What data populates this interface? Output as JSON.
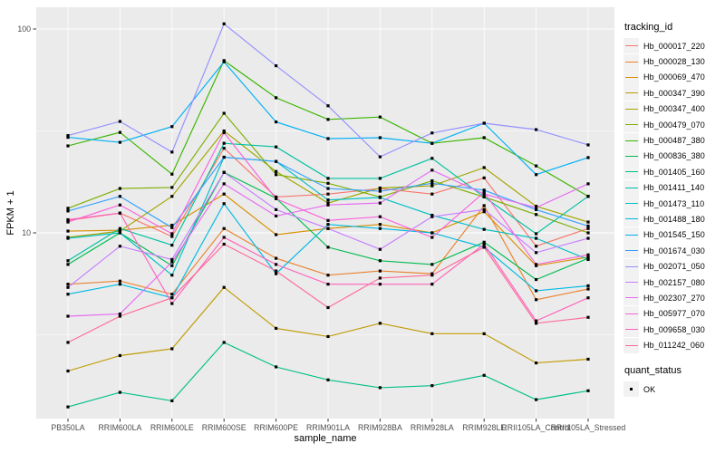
{
  "colors": {
    "panel_bg": "#EBEBEB",
    "grid": "#FFFFFF",
    "tick": "#333333",
    "tick_label": "#4D4D4D",
    "axis_title": "#000000",
    "point": "#000000",
    "legend_key_bg": "#F2F2F2"
  },
  "legend": {
    "tracking_title": "tracking_id",
    "quant_title": "quant_status",
    "quant_items": [
      {
        "label": "OK"
      }
    ]
  },
  "chart_data": {
    "type": "line",
    "title": "",
    "xlabel": "sample_name",
    "ylabel": "FPKM + 1",
    "y_scale": "log10",
    "ylim": [
      1.25,
      128
    ],
    "y_ticks": [
      10,
      100
    ],
    "y_tick_labels": [
      "10",
      "100"
    ],
    "y_minor": [
      3.162,
      31.62
    ],
    "grid": "on",
    "legend_position": "right",
    "point_marker": "black-square",
    "categories": [
      "PB350LA",
      "RRIM600LA",
      "RRIM600LE",
      "RRIM600SE",
      "RRIM600PE",
      "RRIM901LA",
      "RRIM928BA",
      "RRIM928LA",
      "RRIM928LE",
      "RRII105LA_Control",
      "RRII105LA_Stressed"
    ],
    "series": [
      {
        "name": "Hb_000017_220",
        "color": "#F8766D",
        "values": [
          11.5,
          12.5,
          9.6,
          26,
          15,
          15.5,
          16.5,
          15.5,
          18.6,
          8.6,
          10.5
        ]
      },
      {
        "name": "Hb_000028_130",
        "color": "#EA8331",
        "values": [
          5.6,
          5.8,
          5.0,
          10.5,
          7.5,
          6.2,
          6.5,
          6.3,
          13.6,
          4.7,
          5.3
        ]
      },
      {
        "name": "Hb_000069_470",
        "color": "#D89000",
        "values": [
          10.2,
          10.3,
          10.9,
          15.5,
          9.8,
          10.5,
          11.0,
          10.0,
          12.7,
          6.9,
          7.6
        ]
      },
      {
        "name": "Hb_000347_390",
        "color": "#C09B00",
        "values": [
          2.1,
          2.5,
          2.7,
          5.4,
          3.4,
          3.1,
          3.6,
          3.2,
          3.2,
          2.3,
          2.4
        ]
      },
      {
        "name": "Hb_000347_400",
        "color": "#A3A500",
        "values": [
          9.5,
          10.2,
          15.1,
          31.6,
          20,
          14,
          16.6,
          17,
          20.9,
          13.5,
          11.3
        ]
      },
      {
        "name": "Hb_000479_070",
        "color": "#7CAE00",
        "values": [
          13.2,
          16.5,
          16.7,
          38.6,
          19.3,
          17.5,
          15,
          18,
          15,
          12.3,
          10
        ]
      },
      {
        "name": "Hb_000487_380",
        "color": "#39B600",
        "values": [
          26.7,
          31.1,
          19.4,
          70,
          46,
          36,
          37,
          27.5,
          29.3,
          21.3,
          15.1
        ]
      },
      {
        "name": "Hb_000836_380",
        "color": "#00BB4E",
        "values": [
          7.0,
          10.0,
          6.9,
          19.8,
          14.8,
          8.5,
          7.3,
          7.0,
          9.0,
          5.9,
          7.5
        ]
      },
      {
        "name": "Hb_001405_160",
        "color": "#00C087",
        "values": [
          1.4,
          1.65,
          1.5,
          2.9,
          2.2,
          1.9,
          1.74,
          1.78,
          2.0,
          1.52,
          1.68
        ]
      },
      {
        "name": "Hb_001411_140",
        "color": "#00C1A3",
        "values": [
          7.3,
          10.5,
          8.7,
          27.5,
          26.4,
          18.5,
          18.5,
          23.2,
          15.0,
          9.9,
          15.1
        ]
      },
      {
        "name": "Hb_001473_110",
        "color": "#00BFC4",
        "values": [
          9.4,
          10.0,
          6.2,
          23.5,
          22.4,
          14.5,
          14.9,
          12.2,
          10.4,
          9.4,
          7.4
        ]
      },
      {
        "name": "Hb_001488_180",
        "color": "#00BAE0",
        "values": [
          5.0,
          5.6,
          4.8,
          13.9,
          6.3,
          11.0,
          10.5,
          10.0,
          8.5,
          5.2,
          5.5
        ]
      },
      {
        "name": "Hb_001545_150",
        "color": "#00B0F6",
        "values": [
          29.4,
          27.8,
          33.2,
          69,
          35,
          29,
          29.3,
          27.5,
          34.5,
          19.3,
          23.4
        ]
      },
      {
        "name": "Hb_001674_030",
        "color": "#35A2FF",
        "values": [
          12.8,
          15.1,
          10.6,
          23.5,
          22.4,
          16.5,
          16,
          17.5,
          16.2,
          13,
          10.8
        ]
      },
      {
        "name": "Hb_002071_050",
        "color": "#9590FF",
        "values": [
          30,
          35.2,
          24.9,
          106,
          66,
          42,
          23.6,
          30.9,
          34.5,
          32.1,
          27
        ]
      },
      {
        "name": "Hb_002157_080",
        "color": "#C77CFF",
        "values": [
          5.4,
          8.6,
          7.4,
          19.8,
          13,
          10.5,
          8.3,
          12,
          13,
          8.0,
          9.4
        ]
      },
      {
        "name": "Hb_002307_270",
        "color": "#E76BF3",
        "values": [
          3.9,
          4.0,
          7.2,
          17.4,
          12.1,
          13.7,
          14,
          20.3,
          15.5,
          13.3,
          17.4
        ]
      },
      {
        "name": "Hb_005977_070",
        "color": "#FA62DB",
        "values": [
          11.3,
          13.7,
          9.9,
          31,
          14.7,
          11.5,
          12,
          9.5,
          15.8,
          7.0,
          7.8
        ]
      },
      {
        "name": "Hb_009658_030",
        "color": "#FF62BC",
        "values": [
          11.6,
          12.5,
          4.5,
          9.5,
          7.0,
          5.6,
          5.6,
          5.6,
          8.8,
          3.7,
          4.8
        ]
      },
      {
        "name": "Hb_011242_060",
        "color": "#FF6A98",
        "values": [
          2.9,
          3.9,
          4.8,
          8.8,
          6.5,
          4.3,
          6.0,
          6.2,
          8.5,
          3.6,
          3.85
        ]
      }
    ]
  }
}
